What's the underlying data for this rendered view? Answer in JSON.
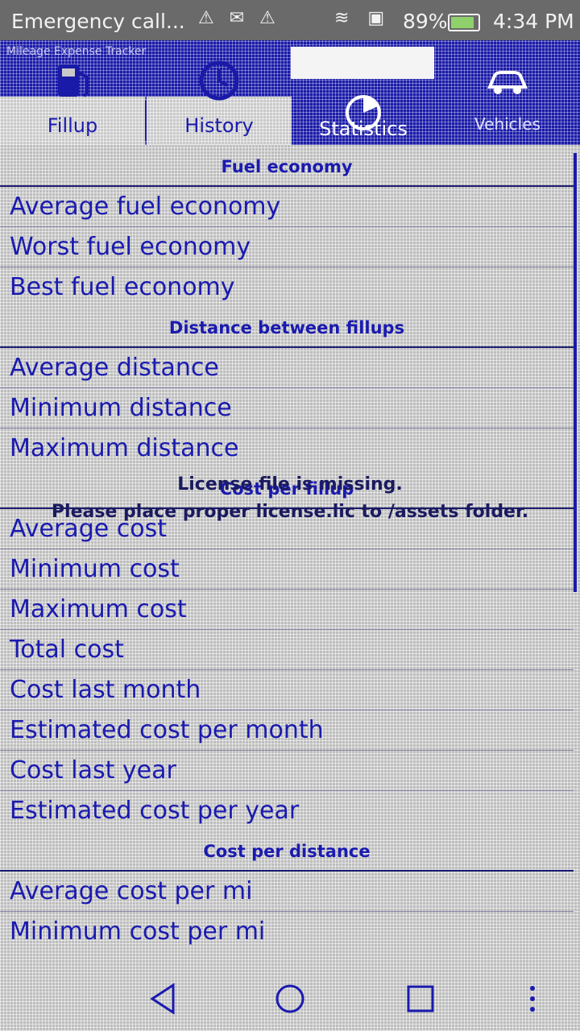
{
  "status_bar": {
    "carrier": "Emergency call...",
    "left_icons": "⚠ ✉ ⚠",
    "right_icons": "≋ ▣",
    "battery_pct": "89%",
    "time": "4:34 PM",
    "battery_color": "#8fd16b"
  },
  "app": {
    "caption": "Mileage Expense Tracker"
  },
  "tabs": [
    {
      "label": "Fillup",
      "icon": "fuel-pump-icon",
      "active": false
    },
    {
      "label": "History",
      "icon": "clock-icon",
      "active": false
    },
    {
      "label": "Statistics",
      "icon": "chart-icon",
      "active": true
    },
    {
      "label": "Vehicles",
      "icon": "car-icon",
      "active": false
    }
  ],
  "sections": [
    {
      "header": "Fuel economy",
      "rows": [
        "Average fuel economy",
        "Worst fuel economy",
        "Best fuel economy"
      ]
    },
    {
      "header": "Distance between fillups",
      "rows": [
        "Average distance",
        "Minimum distance",
        "Maximum distance"
      ]
    },
    {
      "header": "Cost per fillup",
      "rows": [
        "Average cost",
        "Minimum cost",
        "Maximum cost",
        "Total cost",
        "Cost last month",
        "Estimated cost per month",
        "Cost last year",
        "Estimated cost per year"
      ]
    },
    {
      "header": "Cost per distance",
      "rows": [
        "Average cost per mi",
        "Minimum cost per mi"
      ]
    }
  ],
  "license_notice": {
    "line1": "License file is missing.",
    "line2": "Please place proper license.lic to /assets folder."
  },
  "colors": {
    "accent": "#1a1aa8",
    "text": "#1a1ab0",
    "status_bar": "#6a6a6a"
  },
  "nav": {
    "back_icon": "back-triangle-icon",
    "home_icon": "home-circle-icon",
    "recents_icon": "recents-square-icon",
    "menu_icon": "menu-dots-icon"
  }
}
